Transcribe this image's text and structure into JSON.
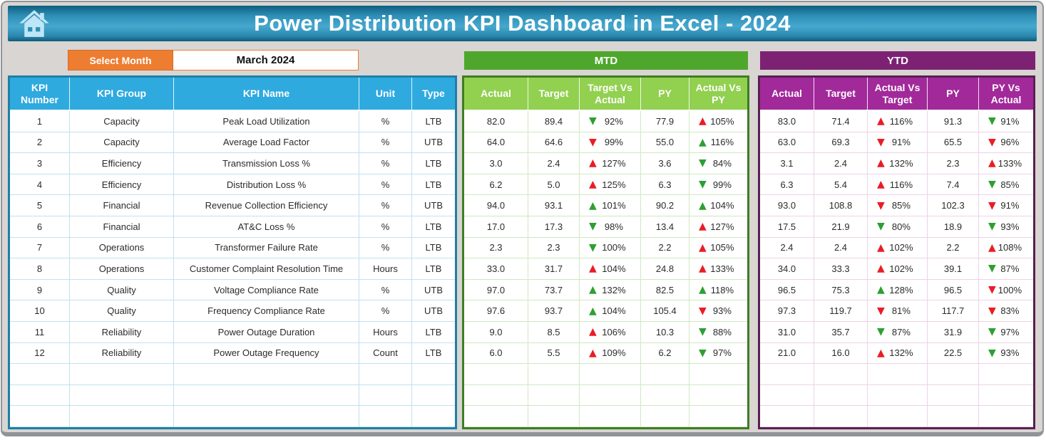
{
  "header": {
    "title": "Power Distribution KPI Dashboard in Excel - 2024",
    "home_icon": "home-icon"
  },
  "controls": {
    "select_month_label": "Select Month",
    "selected_month": "March 2024"
  },
  "sections": {
    "mtd_label": "MTD",
    "ytd_label": "YTD"
  },
  "colors": {
    "banner_teal": "#2d8fb6",
    "accent_orange": "#ed7d31",
    "kpi_header_blue": "#2eaadf",
    "mtd_banner_green": "#4ea72c",
    "mtd_header_green": "#92d050",
    "ytd_banner_purple": "#7d2273",
    "ytd_header_magenta": "#a2299a",
    "trend_green": "#2e9f32",
    "trend_red": "#eb1c24"
  },
  "table": {
    "kpi_headers": [
      "KPI Number",
      "KPI Group",
      "KPI Name",
      "Unit",
      "Type"
    ],
    "mtd_headers": [
      "Actual",
      "Target",
      "Target Vs Actual",
      "PY",
      "Actual Vs PY"
    ],
    "ytd_headers": [
      "Actual",
      "Target",
      "Actual Vs Target",
      "PY",
      "PY Vs Actual"
    ],
    "empty_rows": 3,
    "rows": [
      {
        "number": "1",
        "group": "Capacity",
        "name": "Peak Load Utilization",
        "unit": "%",
        "type": "LTB",
        "mtd": {
          "actual": "82.0",
          "target": "89.4",
          "target_vs_actual": {
            "value": "92%",
            "arrow": "down",
            "state": "good"
          },
          "py": "77.9",
          "actual_vs_py": {
            "value": "105%",
            "arrow": "up",
            "state": "bad"
          }
        },
        "ytd": {
          "actual": "83.0",
          "target": "71.4",
          "actual_vs_target": {
            "value": "116%",
            "arrow": "up",
            "state": "bad"
          },
          "py": "91.3",
          "py_vs_actual": {
            "value": "91%",
            "arrow": "down",
            "state": "good"
          }
        }
      },
      {
        "number": "2",
        "group": "Capacity",
        "name": "Average Load Factor",
        "unit": "%",
        "type": "UTB",
        "mtd": {
          "actual": "64.0",
          "target": "64.6",
          "target_vs_actual": {
            "value": "99%",
            "arrow": "down",
            "state": "bad"
          },
          "py": "55.0",
          "actual_vs_py": {
            "value": "116%",
            "arrow": "up",
            "state": "good"
          }
        },
        "ytd": {
          "actual": "63.0",
          "target": "69.3",
          "actual_vs_target": {
            "value": "91%",
            "arrow": "down",
            "state": "bad"
          },
          "py": "65.5",
          "py_vs_actual": {
            "value": "96%",
            "arrow": "down",
            "state": "bad"
          }
        }
      },
      {
        "number": "3",
        "group": "Efficiency",
        "name": "Transmission Loss %",
        "unit": "%",
        "type": "LTB",
        "mtd": {
          "actual": "3.0",
          "target": "2.4",
          "target_vs_actual": {
            "value": "127%",
            "arrow": "up",
            "state": "bad"
          },
          "py": "3.6",
          "actual_vs_py": {
            "value": "84%",
            "arrow": "down",
            "state": "good"
          }
        },
        "ytd": {
          "actual": "3.1",
          "target": "2.4",
          "actual_vs_target": {
            "value": "132%",
            "arrow": "up",
            "state": "bad"
          },
          "py": "2.3",
          "py_vs_actual": {
            "value": "133%",
            "arrow": "up",
            "state": "bad"
          }
        }
      },
      {
        "number": "4",
        "group": "Efficiency",
        "name": "Distribution Loss %",
        "unit": "%",
        "type": "LTB",
        "mtd": {
          "actual": "6.2",
          "target": "5.0",
          "target_vs_actual": {
            "value": "125%",
            "arrow": "up",
            "state": "bad"
          },
          "py": "6.3",
          "actual_vs_py": {
            "value": "99%",
            "arrow": "down",
            "state": "good"
          }
        },
        "ytd": {
          "actual": "6.3",
          "target": "5.4",
          "actual_vs_target": {
            "value": "116%",
            "arrow": "up",
            "state": "bad"
          },
          "py": "7.4",
          "py_vs_actual": {
            "value": "85%",
            "arrow": "down",
            "state": "good"
          }
        }
      },
      {
        "number": "5",
        "group": "Financial",
        "name": "Revenue Collection Efficiency",
        "unit": "%",
        "type": "UTB",
        "mtd": {
          "actual": "94.0",
          "target": "93.1",
          "target_vs_actual": {
            "value": "101%",
            "arrow": "up",
            "state": "good"
          },
          "py": "90.2",
          "actual_vs_py": {
            "value": "104%",
            "arrow": "up",
            "state": "good"
          }
        },
        "ytd": {
          "actual": "93.0",
          "target": "108.8",
          "actual_vs_target": {
            "value": "85%",
            "arrow": "down",
            "state": "bad"
          },
          "py": "102.3",
          "py_vs_actual": {
            "value": "91%",
            "arrow": "down",
            "state": "bad"
          }
        }
      },
      {
        "number": "6",
        "group": "Financial",
        "name": "AT&C Loss %",
        "unit": "%",
        "type": "LTB",
        "mtd": {
          "actual": "17.0",
          "target": "17.3",
          "target_vs_actual": {
            "value": "98%",
            "arrow": "down",
            "state": "good"
          },
          "py": "13.4",
          "actual_vs_py": {
            "value": "127%",
            "arrow": "up",
            "state": "bad"
          }
        },
        "ytd": {
          "actual": "17.5",
          "target": "21.9",
          "actual_vs_target": {
            "value": "80%",
            "arrow": "down",
            "state": "good"
          },
          "py": "18.9",
          "py_vs_actual": {
            "value": "93%",
            "arrow": "down",
            "state": "good"
          }
        }
      },
      {
        "number": "7",
        "group": "Operations",
        "name": "Transformer Failure Rate",
        "unit": "%",
        "type": "LTB",
        "mtd": {
          "actual": "2.3",
          "target": "2.3",
          "target_vs_actual": {
            "value": "100%",
            "arrow": "down",
            "state": "good"
          },
          "py": "2.2",
          "actual_vs_py": {
            "value": "105%",
            "arrow": "up",
            "state": "bad"
          }
        },
        "ytd": {
          "actual": "2.4",
          "target": "2.4",
          "actual_vs_target": {
            "value": "102%",
            "arrow": "up",
            "state": "bad"
          },
          "py": "2.2",
          "py_vs_actual": {
            "value": "108%",
            "arrow": "up",
            "state": "bad"
          }
        }
      },
      {
        "number": "8",
        "group": "Operations",
        "name": "Customer Complaint Resolution Time",
        "unit": "Hours",
        "type": "LTB",
        "mtd": {
          "actual": "33.0",
          "target": "31.7",
          "target_vs_actual": {
            "value": "104%",
            "arrow": "up",
            "state": "bad"
          },
          "py": "24.8",
          "actual_vs_py": {
            "value": "133%",
            "arrow": "up",
            "state": "bad"
          }
        },
        "ytd": {
          "actual": "34.0",
          "target": "33.3",
          "actual_vs_target": {
            "value": "102%",
            "arrow": "up",
            "state": "bad"
          },
          "py": "39.1",
          "py_vs_actual": {
            "value": "87%",
            "arrow": "down",
            "state": "good"
          }
        }
      },
      {
        "number": "9",
        "group": "Quality",
        "name": "Voltage Compliance Rate",
        "unit": "%",
        "type": "UTB",
        "mtd": {
          "actual": "97.0",
          "target": "73.7",
          "target_vs_actual": {
            "value": "132%",
            "arrow": "up",
            "state": "good"
          },
          "py": "82.5",
          "actual_vs_py": {
            "value": "118%",
            "arrow": "up",
            "state": "good"
          }
        },
        "ytd": {
          "actual": "96.5",
          "target": "75.3",
          "actual_vs_target": {
            "value": "128%",
            "arrow": "up",
            "state": "good"
          },
          "py": "96.5",
          "py_vs_actual": {
            "value": "100%",
            "arrow": "down",
            "state": "bad"
          }
        }
      },
      {
        "number": "10",
        "group": "Quality",
        "name": "Frequency Compliance Rate",
        "unit": "%",
        "type": "UTB",
        "mtd": {
          "actual": "97.6",
          "target": "93.7",
          "target_vs_actual": {
            "value": "104%",
            "arrow": "up",
            "state": "good"
          },
          "py": "105.4",
          "actual_vs_py": {
            "value": "93%",
            "arrow": "down",
            "state": "bad"
          }
        },
        "ytd": {
          "actual": "97.3",
          "target": "119.7",
          "actual_vs_target": {
            "value": "81%",
            "arrow": "down",
            "state": "bad"
          },
          "py": "117.7",
          "py_vs_actual": {
            "value": "83%",
            "arrow": "down",
            "state": "bad"
          }
        }
      },
      {
        "number": "11",
        "group": "Reliability",
        "name": "Power Outage Duration",
        "unit": "Hours",
        "type": "LTB",
        "mtd": {
          "actual": "9.0",
          "target": "8.5",
          "target_vs_actual": {
            "value": "106%",
            "arrow": "up",
            "state": "bad"
          },
          "py": "10.3",
          "actual_vs_py": {
            "value": "88%",
            "arrow": "down",
            "state": "good"
          }
        },
        "ytd": {
          "actual": "31.0",
          "target": "35.7",
          "actual_vs_target": {
            "value": "87%",
            "arrow": "down",
            "state": "good"
          },
          "py": "31.9",
          "py_vs_actual": {
            "value": "97%",
            "arrow": "down",
            "state": "good"
          }
        }
      },
      {
        "number": "12",
        "group": "Reliability",
        "name": "Power Outage Frequency",
        "unit": "Count",
        "type": "LTB",
        "mtd": {
          "actual": "6.0",
          "target": "5.5",
          "target_vs_actual": {
            "value": "109%",
            "arrow": "up",
            "state": "bad"
          },
          "py": "6.2",
          "actual_vs_py": {
            "value": "97%",
            "arrow": "down",
            "state": "good"
          }
        },
        "ytd": {
          "actual": "21.0",
          "target": "16.0",
          "actual_vs_target": {
            "value": "132%",
            "arrow": "up",
            "state": "bad"
          },
          "py": "22.5",
          "py_vs_actual": {
            "value": "93%",
            "arrow": "down",
            "state": "good"
          }
        }
      }
    ]
  }
}
